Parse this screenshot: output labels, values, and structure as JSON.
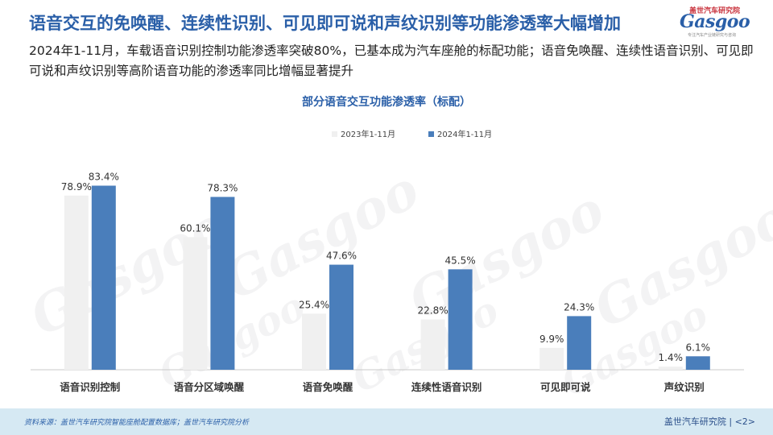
{
  "header": {
    "title": "语音交互的免唤醒、连续性识别、可见即可说和声纹识别等功能渗透率大幅增加",
    "subtitle": "2024年1-11月，车载语音识别控制功能渗透率突破80%，已基本成为汽车座舱的标配功能；语音免唤醒、连续性语音识别、可见即可说和声纹识别等高阶语音功能的渗透率同比增幅显著提升"
  },
  "logo": {
    "top_text": "盖世汽车研究院",
    "main_text": "Gasgoo",
    "sub_text": "专注汽车产业链研究与咨询"
  },
  "chart_data": {
    "type": "bar",
    "title": "部分语音交互功能渗透率（标配）",
    "categories": [
      "语音识别控制",
      "语音分区域唤醒",
      "语音免唤醒",
      "连续性语音识别",
      "可见即可说",
      "声纹识别"
    ],
    "series": [
      {
        "name": "2023年1-11月",
        "values": [
          78.9,
          60.1,
          25.4,
          22.8,
          9.9,
          1.4
        ],
        "labels": [
          "78.9%",
          "60.1%",
          "25.4%",
          "22.8%",
          "9.9%",
          "1.4%"
        ],
        "color": "#f0f0f0"
      },
      {
        "name": "2024年1-11月",
        "values": [
          83.4,
          78.3,
          47.6,
          45.5,
          24.3,
          6.1
        ],
        "labels": [
          "83.4%",
          "78.3%",
          "47.6%",
          "45.5%",
          "24.3%",
          "6.1%"
        ],
        "color": "#4a7ebb"
      }
    ],
    "ylim": [
      0,
      100
    ],
    "unit": "%",
    "legend": "top-center",
    "grid": false
  },
  "watermarks": [
    "Gasgoo",
    "Gasgoo",
    "Gasgoo",
    "Gasgoo",
    "Gasgoo",
    "Gasgoo",
    "Gasgoo"
  ],
  "footer": {
    "source": "资料来源：盖世汽车研究院智能座舱配置数据库；盖世汽车研究院分析",
    "org": "盖世汽车研究院",
    "page": "<2>"
  },
  "colors": {
    "accent": "#2a5fa8",
    "footer_bg": "#d6e9f3",
    "brand_red": "#c8303a"
  }
}
